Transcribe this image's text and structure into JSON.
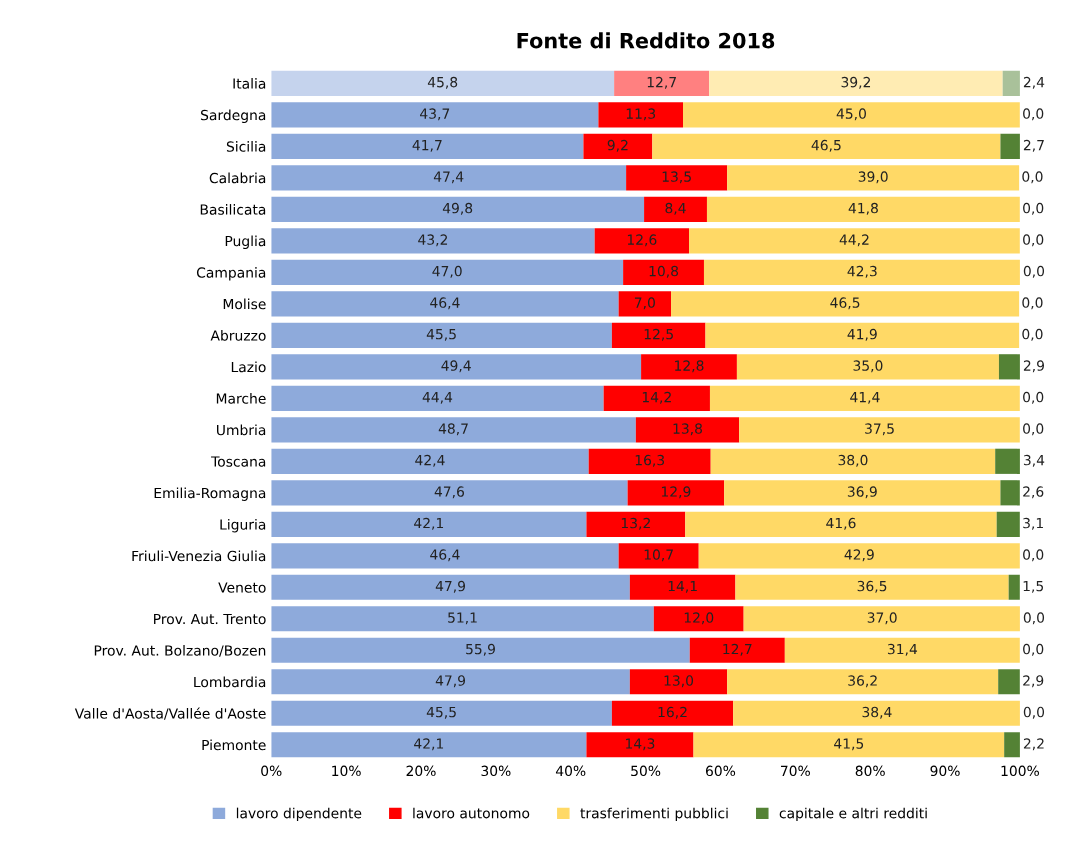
{
  "chart_data": {
    "type": "bar",
    "orientation": "horizontal",
    "stacked": true,
    "title": "Fonte di Reddito 2018",
    "categories": [
      "Italia",
      "Sardegna",
      "Sicilia",
      "Calabria",
      "Basilicata",
      "Puglia",
      "Campania",
      "Molise",
      "Abruzzo",
      "Lazio",
      "Marche",
      "Umbria",
      "Toscana",
      "Emilia-Romagna",
      "Liguria",
      "Friuli-Venezia Giulia",
      "Veneto",
      "Prov. Aut. Trento",
      "Prov. Aut. Bolzano/Bozen",
      "Lombardia",
      "Valle d'Aosta/Vallée d'Aoste",
      "Piemonte"
    ],
    "series": [
      {
        "name": "lavoro dipendente",
        "color": "#8eaadb",
        "colors": [
          "#c5d3ed",
          "#8eaadb",
          "#8eaadb",
          "#8eaadb",
          "#8eaadb",
          "#8eaadb",
          "#8eaadb",
          "#8eaadb",
          "#8eaadb",
          "#8eaadb",
          "#8eaadb",
          "#8eaadb",
          "#8eaadb",
          "#8eaadb",
          "#8eaadb",
          "#8eaadb",
          "#8eaadb",
          "#8eaadb",
          "#8eaadb",
          "#8eaadb",
          "#8eaadb",
          "#8eaadb"
        ],
        "values": [
          45.8,
          43.7,
          41.7,
          47.4,
          49.8,
          43.2,
          47.0,
          46.4,
          45.5,
          49.4,
          44.4,
          48.7,
          42.4,
          47.6,
          42.1,
          46.4,
          47.9,
          51.1,
          55.9,
          47.9,
          45.5,
          42.1
        ],
        "value_labels": [
          "45,8",
          "43,7",
          "41,7",
          "47,4",
          "49,8",
          "43,2",
          "47,0",
          "46,4",
          "45,5",
          "49,4",
          "44,4",
          "48,7",
          "42,4",
          "47,6",
          "42,1",
          "46,4",
          "47,9",
          "51,1",
          "55,9",
          "47,9",
          "45,5",
          "42,1"
        ]
      },
      {
        "name": "lavoro autonomo",
        "color": "#ff0000",
        "colors": [
          "#ff8080",
          "#ff0000",
          "#ff0000",
          "#ff0000",
          "#ff0000",
          "#ff0000",
          "#ff0000",
          "#ff0000",
          "#ff0000",
          "#ff0000",
          "#ff0000",
          "#ff0000",
          "#ff0000",
          "#ff0000",
          "#ff0000",
          "#ff0000",
          "#ff0000",
          "#ff0000",
          "#ff0000",
          "#ff0000",
          "#ff0000",
          "#ff0000"
        ],
        "values": [
          12.7,
          11.3,
          9.2,
          13.5,
          8.4,
          12.6,
          10.8,
          7.0,
          12.5,
          12.8,
          14.2,
          13.8,
          16.3,
          12.9,
          13.2,
          10.7,
          14.1,
          12.0,
          12.7,
          13.0,
          16.2,
          14.3
        ],
        "value_labels": [
          "12,7",
          "11,3",
          "9,2",
          "13,5",
          "8,4",
          "12,6",
          "10,8",
          "7,0",
          "12,5",
          "12,8",
          "14,2",
          "13,8",
          "16,3",
          "12,9",
          "13,2",
          "10,7",
          "14,1",
          "12,0",
          "12,7",
          "13,0",
          "16,2",
          "14,3"
        ]
      },
      {
        "name": "trasferimenti pubblici",
        "color": "#ffd966",
        "colors": [
          "#ffecb3",
          "#ffd966",
          "#ffd966",
          "#ffd966",
          "#ffd966",
          "#ffd966",
          "#ffd966",
          "#ffd966",
          "#ffd966",
          "#ffd966",
          "#ffd966",
          "#ffd966",
          "#ffd966",
          "#ffd966",
          "#ffd966",
          "#ffd966",
          "#ffd966",
          "#ffd966",
          "#ffd966",
          "#ffd966",
          "#ffd966",
          "#ffd966"
        ],
        "values": [
          39.2,
          45.0,
          46.5,
          39.0,
          41.8,
          44.2,
          42.3,
          46.5,
          41.9,
          35.0,
          41.4,
          37.5,
          38.0,
          36.9,
          41.6,
          42.9,
          36.5,
          37.0,
          31.4,
          36.2,
          38.4,
          41.5
        ],
        "value_labels": [
          "39,2",
          "45,0",
          "46,5",
          "39,0",
          "41,8",
          "44,2",
          "42,3",
          "46,5",
          "41,9",
          "35,0",
          "41,4",
          "37,5",
          "38,0",
          "36,9",
          "41,6",
          "42,9",
          "36,5",
          "37,0",
          "31,4",
          "36,2",
          "38,4",
          "41,5"
        ]
      },
      {
        "name": "capitale e altri redditi",
        "color": "#548235",
        "colors": [
          "#a9c19a",
          "#548235",
          "#548235",
          "#548235",
          "#548235",
          "#548235",
          "#548235",
          "#548235",
          "#548235",
          "#548235",
          "#548235",
          "#548235",
          "#548235",
          "#548235",
          "#548235",
          "#548235",
          "#548235",
          "#548235",
          "#548235",
          "#548235",
          "#548235",
          "#548235"
        ],
        "values": [
          2.4,
          0.0,
          2.7,
          0.0,
          0.0,
          0.0,
          0.0,
          0.0,
          0.0,
          2.9,
          0.0,
          0.0,
          3.4,
          2.6,
          3.1,
          0.0,
          1.5,
          0.0,
          0.0,
          2.9,
          0.0,
          2.2
        ],
        "value_labels": [
          "2,4",
          "0,0",
          "2,7",
          "0,0",
          "0,0",
          "0,0",
          "0,0",
          "0,0",
          "0,0",
          "2,9",
          "0,0",
          "0,0",
          "3,4",
          "2,6",
          "3,1",
          "0,0",
          "1,5",
          "0,0",
          "0,0",
          "2,9",
          "0,0",
          "2,2"
        ]
      }
    ],
    "xlim": [
      0,
      100
    ],
    "xticks": [
      {
        "value": 0,
        "label": "0%"
      },
      {
        "value": 10,
        "label": "10%"
      },
      {
        "value": 20,
        "label": "20%"
      },
      {
        "value": 30,
        "label": "30%"
      },
      {
        "value": 40,
        "label": "40%"
      },
      {
        "value": 50,
        "label": "50%"
      },
      {
        "value": 60,
        "label": "60%"
      },
      {
        "value": 70,
        "label": "70%"
      },
      {
        "value": 80,
        "label": "80%"
      },
      {
        "value": 90,
        "label": "90%"
      },
      {
        "value": 100,
        "label": "100%"
      }
    ],
    "grid": false,
    "legend": "bottom"
  }
}
